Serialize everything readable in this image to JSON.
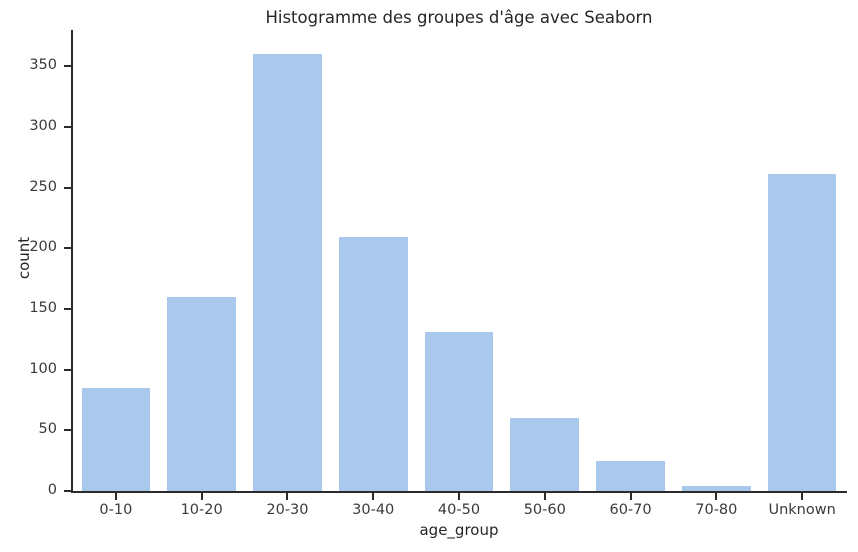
{
  "chart_data": {
    "type": "bar",
    "title": "Histogramme des groupes d'âge avec Seaborn",
    "xlabel": "age_group",
    "ylabel": "count",
    "categories": [
      "0-10",
      "10-20",
      "20-30",
      "30-40",
      "40-50",
      "50-60",
      "60-70",
      "70-80",
      "Unknown"
    ],
    "values": [
      85,
      160,
      360,
      209,
      131,
      60,
      25,
      4,
      261
    ],
    "yticks": [
      0,
      50,
      100,
      150,
      200,
      250,
      300,
      350
    ],
    "ylim": [
      0,
      380
    ],
    "grid": false,
    "legend": null,
    "bar_width_fraction": 0.8,
    "colors": {
      "bar_fill": "#a9c8ec",
      "axis": "#2b2b2b",
      "tick_text": "#3a3a3a",
      "title_text": "#262626",
      "background": "#ffffff"
    }
  }
}
